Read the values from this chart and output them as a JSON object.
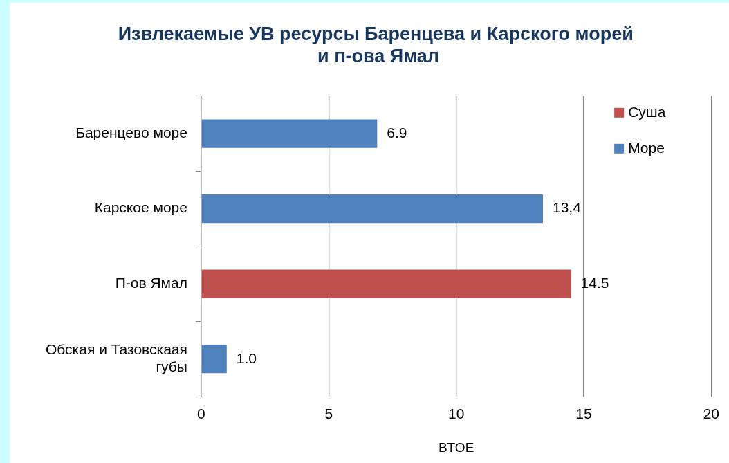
{
  "chart_data": {
    "type": "bar",
    "orientation": "horizontal",
    "stacked": true,
    "title": "Извлекаемые УВ ресурсы Баренцева и Карского морей  и п-ова Ямал",
    "xlabel": "BTOE",
    "categories": [
      "Баренцево море",
      "Карское море",
      "П-ов Ямал",
      "Обская и Тазовскаая губы"
    ],
    "series": [
      {
        "name": "Суша",
        "color": "#c0504d",
        "values": [
          null,
          null,
          14.5,
          null
        ],
        "value_labels": [
          null,
          null,
          "14.5",
          null
        ]
      },
      {
        "name": "Море",
        "color": "#4f81bd",
        "values": [
          6.9,
          13.4,
          null,
          1.0
        ],
        "value_labels": [
          "6.9",
          "13,4",
          null,
          "1.0"
        ]
      }
    ],
    "xlim": [
      0,
      20
    ],
    "xticks": [
      0,
      5,
      10,
      15,
      20
    ],
    "grid": "x",
    "legend": "top right"
  }
}
